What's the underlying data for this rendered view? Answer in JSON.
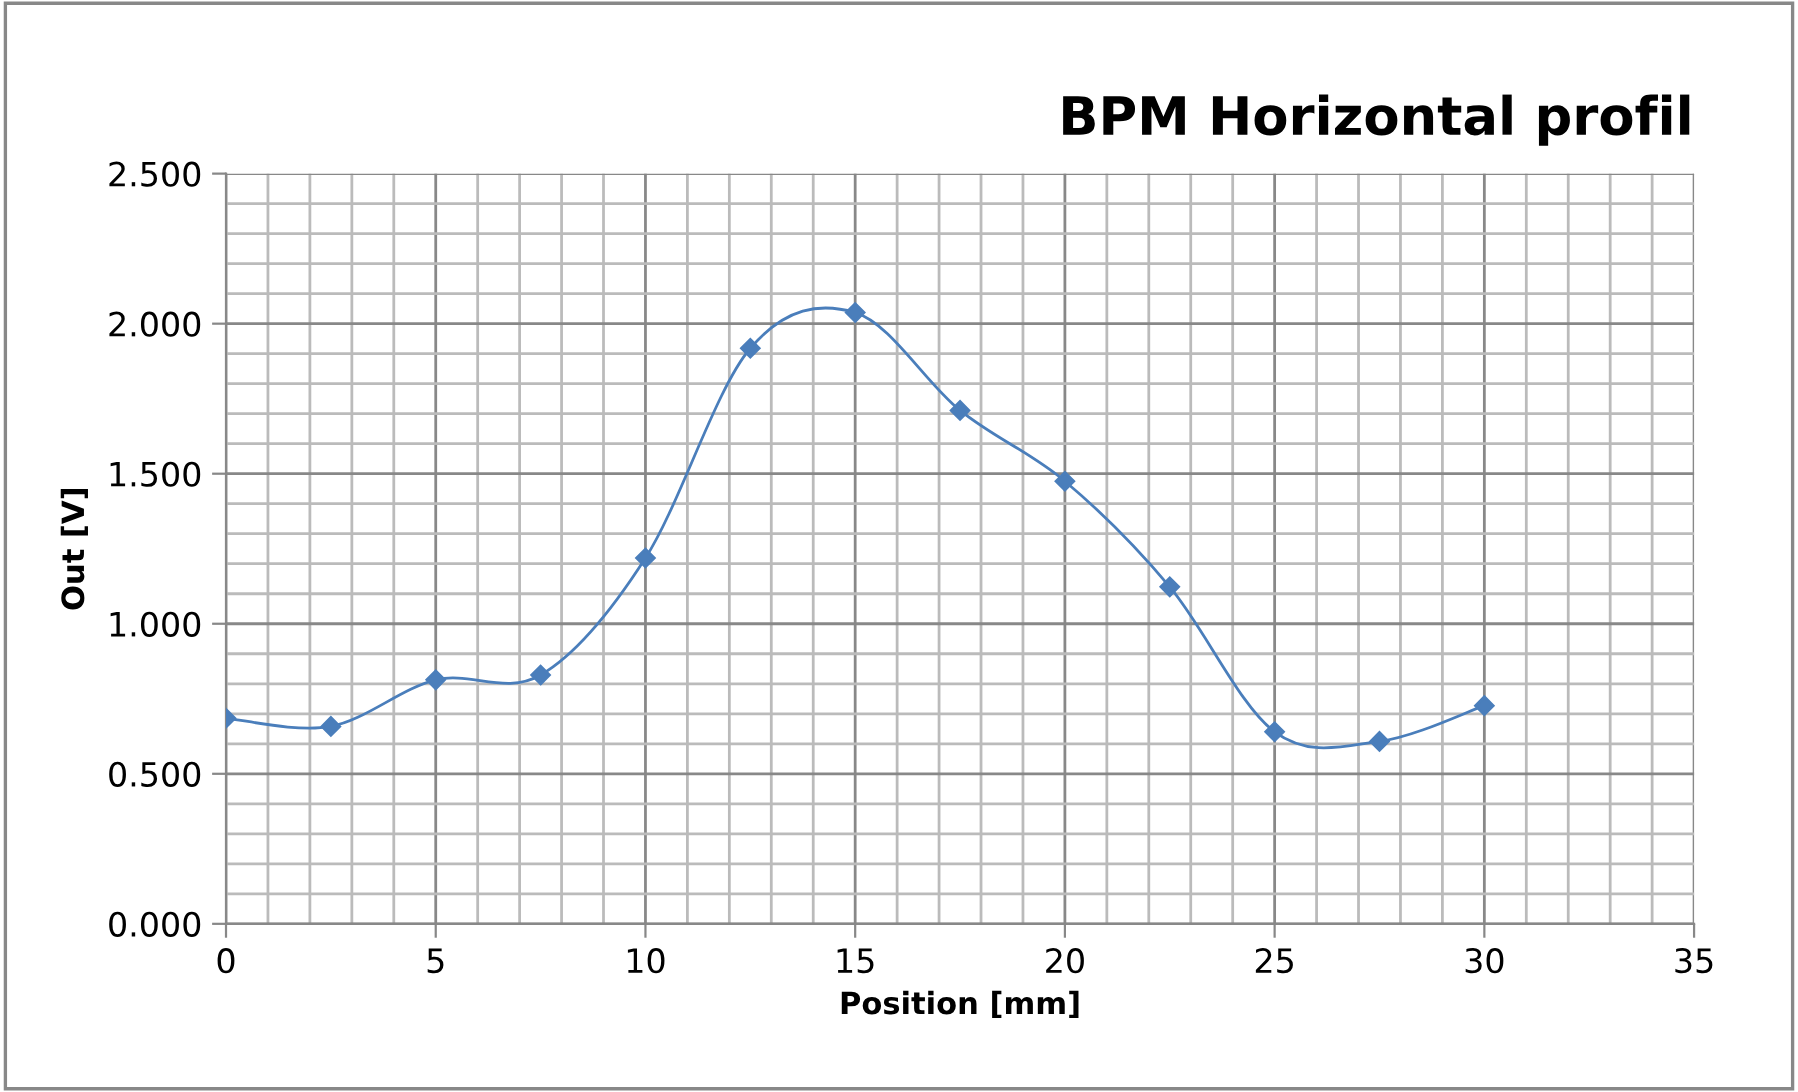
{
  "chart_data": {
    "type": "line",
    "title": "BPM Horizontal profil",
    "xlabel": "Position [mm]",
    "ylabel": "Out [V]",
    "x": [
      0,
      2.5,
      5,
      7.5,
      10,
      12.5,
      15,
      17.5,
      20,
      22.5,
      25,
      27.5,
      30
    ],
    "series": [
      {
        "color": "#4a7ebb",
        "values": [
          0.685,
          0.658,
          0.813,
          0.829,
          1.219,
          1.918,
          2.037,
          1.711,
          1.475,
          1.123,
          0.64,
          0.608,
          0.727
        ]
      }
    ],
    "xlim": [
      0,
      35
    ],
    "xticks": [
      0,
      5,
      10,
      15,
      20,
      25,
      30,
      35
    ],
    "ylim": [
      0,
      2.5
    ],
    "yticks": [
      {
        "value": 0,
        "label": "0.000"
      },
      {
        "value": 0.5,
        "label": "0.500"
      },
      {
        "value": 1,
        "label": "1.000"
      },
      {
        "value": 1.5,
        "label": "1.500"
      },
      {
        "value": 2,
        "label": "2.000"
      },
      {
        "value": 2.5,
        "label": "2.500"
      }
    ],
    "grid": true,
    "marker": "diamond",
    "line_style": "solid",
    "legend": false
  }
}
